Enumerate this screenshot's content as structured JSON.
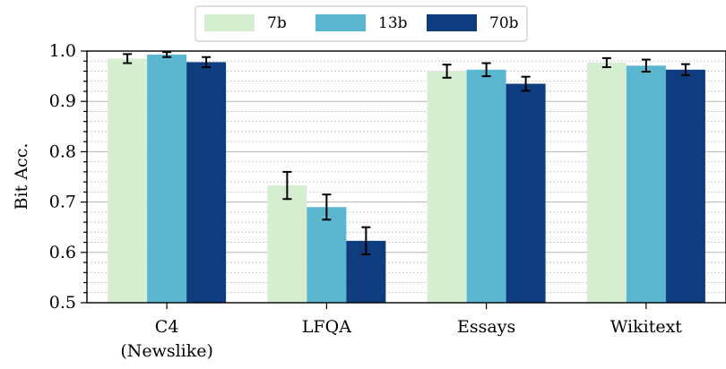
{
  "chart_data": {
    "type": "bar",
    "title": "",
    "xlabel": "",
    "ylabel": "Bit Acc.",
    "ylim": [
      0.5,
      1.0
    ],
    "yticks": [
      "0.5",
      "0.6",
      "0.7",
      "0.8",
      "0.9",
      "1.0"
    ],
    "grid": "on (major and minor horizontal)",
    "legend_position": "top-center",
    "categories": [
      [
        "C4",
        "(Newslike)"
      ],
      [
        "LFQA"
      ],
      [
        "Essays"
      ],
      [
        "Wikitext"
      ]
    ],
    "series": [
      {
        "name": "7b",
        "color": "#d6eed0",
        "values": [
          0.985,
          0.733,
          0.96,
          0.977
        ],
        "errors": [
          0.009,
          0.027,
          0.013,
          0.009
        ]
      },
      {
        "name": "13b",
        "color": "#5bb6d0",
        "values": [
          0.993,
          0.69,
          0.963,
          0.971
        ],
        "errors": [
          0.005,
          0.025,
          0.013,
          0.012
        ]
      },
      {
        "name": "70b",
        "color": "#0e3c7e",
        "values": [
          0.978,
          0.623,
          0.935,
          0.963
        ],
        "errors": [
          0.01,
          0.027,
          0.014,
          0.011
        ]
      }
    ]
  }
}
